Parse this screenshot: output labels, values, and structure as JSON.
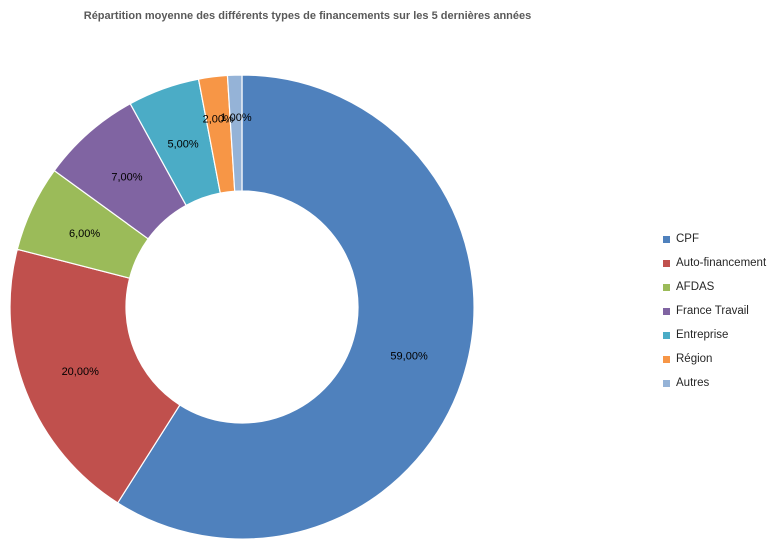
{
  "chart_data": {
    "type": "pie",
    "variant": "donut",
    "title": "Répartition moyenne des différents types de financements sur les 5 dernières années",
    "categories": [
      "CPF",
      "Auto-financement",
      "AFDAS",
      "France Travail",
      "Entreprise",
      "Région",
      "Autres"
    ],
    "values": [
      59,
      20,
      6,
      7,
      5,
      2,
      1
    ],
    "labels": [
      "59,00%",
      "20,00%",
      "6,00%",
      "7,00%",
      "5,00%",
      "2,00%",
      "1,00%"
    ],
    "colors": [
      "#4F81BD",
      "#C0504D",
      "#9BBB59",
      "#8064A2",
      "#4BACC6",
      "#F79646",
      "#95B3D7"
    ],
    "legend_position": "right"
  }
}
